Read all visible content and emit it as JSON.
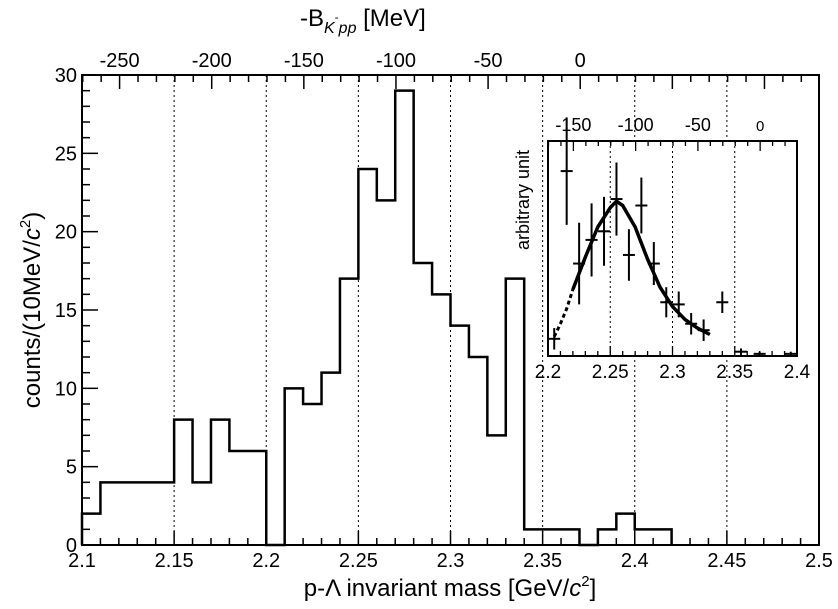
{
  "chart_data": [
    {
      "type": "histogram",
      "xlabel_main": "p-Λ invariant mass [GeV/",
      "xlabel_c": "c",
      "xlabel_sup": "2",
      "xlabel_end": "]",
      "ylabel_main": "counts/(10MeV/",
      "ylabel_c": "c",
      "ylabel_sup": "2",
      "ylabel_end": ")",
      "toplabel_main": "-B",
      "toplabel_sub": "K",
      "toplabel_supminus": "-",
      "toplabel_sub2": "pp",
      "toplabel_end": " [MeV]",
      "xlim": [
        2.1,
        2.5
      ],
      "ylim": [
        0,
        30
      ],
      "xticks": [
        "2.1",
        "2.15",
        "2.2",
        "2.25",
        "2.3",
        "2.35",
        "2.4",
        "2.45",
        "2.5"
      ],
      "yticks": [
        "0",
        "5",
        "10",
        "15",
        "20",
        "25",
        "30"
      ],
      "top_ticks": [
        "-250",
        "-200",
        "-150",
        "-100",
        "-50",
        "0"
      ],
      "grid": "vertical dotted",
      "bin_edges": [
        2.1,
        2.11,
        2.12,
        2.13,
        2.14,
        2.15,
        2.16,
        2.17,
        2.18,
        2.19,
        2.2,
        2.21,
        2.22,
        2.23,
        2.24,
        2.25,
        2.26,
        2.27,
        2.28,
        2.29,
        2.3,
        2.31,
        2.32,
        2.33,
        2.34,
        2.35,
        2.36,
        2.37,
        2.38,
        2.39,
        2.4,
        2.41,
        2.42
      ],
      "counts": [
        2,
        4,
        4,
        4,
        4,
        8,
        4,
        8,
        6,
        6,
        0,
        10,
        9,
        11,
        17,
        24,
        22,
        29,
        18,
        16,
        14,
        12,
        7,
        17,
        1,
        1,
        1,
        0,
        1,
        2,
        1,
        1
      ]
    },
    {
      "type": "scatter",
      "inset": true,
      "ylabel": "arbitrary unit",
      "xlim": [
        2.2,
        2.4
      ],
      "xticks": [
        "2.2",
        "2.25",
        "2.3",
        "2.35",
        "2.4"
      ],
      "top_ticks": [
        "-150",
        "-100",
        "-50",
        "0"
      ],
      "grid": "vertical dotted",
      "points": [
        {
          "x": 2.205,
          "y": 0.08,
          "err": 0.05
        },
        {
          "x": 2.215,
          "y": 0.86,
          "err": 0.25
        },
        {
          "x": 2.225,
          "y": 0.43,
          "err": 0.19
        },
        {
          "x": 2.235,
          "y": 0.54,
          "err": 0.17
        },
        {
          "x": 2.245,
          "y": 0.58,
          "err": 0.16
        },
        {
          "x": 2.255,
          "y": 0.73,
          "err": 0.17
        },
        {
          "x": 2.265,
          "y": 0.47,
          "err": 0.12
        },
        {
          "x": 2.275,
          "y": 0.7,
          "err": 0.13
        },
        {
          "x": 2.285,
          "y": 0.43,
          "err": 0.1
        },
        {
          "x": 2.295,
          "y": 0.25,
          "err": 0.07
        },
        {
          "x": 2.305,
          "y": 0.24,
          "err": 0.06
        },
        {
          "x": 2.315,
          "y": 0.15,
          "err": 0.05
        },
        {
          "x": 2.325,
          "y": 0.12,
          "err": 0.05
        },
        {
          "x": 2.34,
          "y": 0.25,
          "err": 0.05
        },
        {
          "x": 2.355,
          "y": 0.02,
          "err": 0.015
        },
        {
          "x": 2.37,
          "y": 0.01,
          "err": 0.01
        },
        {
          "x": 2.395,
          "y": 0.01,
          "err": 0.01
        }
      ],
      "fit_curve": {
        "solid": [
          [
            2.22,
            0.31
          ],
          [
            2.23,
            0.46
          ],
          [
            2.24,
            0.6
          ],
          [
            2.25,
            0.69
          ],
          [
            2.255,
            0.72
          ],
          [
            2.26,
            0.7
          ],
          [
            2.27,
            0.6
          ],
          [
            2.28,
            0.45
          ],
          [
            2.29,
            0.32
          ],
          [
            2.3,
            0.23
          ],
          [
            2.31,
            0.17
          ],
          [
            2.32,
            0.13
          ],
          [
            2.33,
            0.1
          ]
        ],
        "dashed": [
          [
            2.205,
            0.09
          ],
          [
            2.21,
            0.15
          ],
          [
            2.215,
            0.22
          ],
          [
            2.22,
            0.31
          ]
        ]
      }
    }
  ]
}
